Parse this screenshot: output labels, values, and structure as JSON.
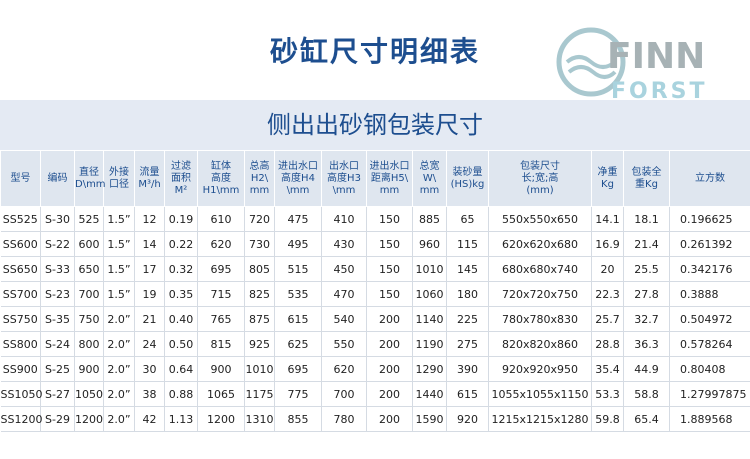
{
  "header": {
    "title": "砂缸尺寸明细表",
    "logo": {
      "line1": "FINN",
      "line2": "FORST"
    }
  },
  "subtitle": "侧出出砂钢包装尺寸",
  "table": {
    "columns": [
      [
        "型号"
      ],
      [
        "编码"
      ],
      [
        "直径",
        "D\\mm"
      ],
      [
        "外接",
        "口径"
      ],
      [
        "流量",
        "M³/h"
      ],
      [
        "过滤",
        "面积",
        "M²"
      ],
      [
        "缸体",
        "高度",
        "H1\\mm"
      ],
      [
        "总高",
        "H2\\",
        "mm"
      ],
      [
        "进出水口",
        "高度H4",
        "\\mm"
      ],
      [
        "出水口",
        "高度H3",
        "\\mm"
      ],
      [
        "进出水口",
        "距离H5\\",
        "mm"
      ],
      [
        "总宽",
        "W\\",
        "mm"
      ],
      [
        "装砂量",
        "(HS)kg"
      ],
      [
        "包装尺寸",
        "长;宽;高",
        "(mm)"
      ],
      [
        "净重",
        "Kg"
      ],
      [
        "包装全",
        "重Kg"
      ],
      [
        "立方数"
      ]
    ],
    "rows": [
      [
        "SS525",
        "S-30",
        "525",
        "1.5”",
        "12",
        "0.19",
        "610",
        "720",
        "475",
        "410",
        "150",
        "885",
        "65",
        "550x550x650",
        "14.1",
        "18.1",
        "0.196625"
      ],
      [
        "SS600",
        "S-22",
        "600",
        "1.5”",
        "14",
        "0.22",
        "620",
        "730",
        "495",
        "430",
        "150",
        "960",
        "115",
        "620x620x680",
        "16.9",
        "21.4",
        "0.261392"
      ],
      [
        "SS650",
        "S-33",
        "650",
        "1.5”",
        "17",
        "0.32",
        "695",
        "805",
        "515",
        "450",
        "150",
        "1010",
        "145",
        "680x680x740",
        "20",
        "25.5",
        "0.342176"
      ],
      [
        "SS700",
        "S-23",
        "700",
        "1.5”",
        "19",
        "0.35",
        "715",
        "825",
        "535",
        "470",
        "150",
        "1060",
        "180",
        "720x720x750",
        "22.3",
        "27.8",
        "0.3888"
      ],
      [
        "SS750",
        "S-35",
        "750",
        "2.0”",
        "21",
        "0.40",
        "765",
        "875",
        "615",
        "540",
        "200",
        "1140",
        "225",
        "780x780x830",
        "25.7",
        "32.7",
        "0.504972"
      ],
      [
        "SS800",
        "S-24",
        "800",
        "2.0”",
        "24",
        "0.50",
        "815",
        "925",
        "625",
        "550",
        "200",
        "1190",
        "275",
        "820x820x860",
        "28.8",
        "36.3",
        "0.578264"
      ],
      [
        "SS900",
        "S-25",
        "900",
        "2.0”",
        "30",
        "0.64",
        "900",
        "1010",
        "695",
        "620",
        "200",
        "1290",
        "390",
        "920x920x950",
        "35.4",
        "44.9",
        "0.80408"
      ],
      [
        "SS1050",
        "S-27",
        "1050",
        "2.0”",
        "38",
        "0.88",
        "1065",
        "1175",
        "775",
        "700",
        "200",
        "1440",
        "615",
        "1055x1055x1150",
        "53.3",
        "58.8",
        "1.27997875"
      ],
      [
        "SS1200",
        "S-29",
        "1200",
        "2.0”",
        "42",
        "1.13",
        "1200",
        "1310",
        "855",
        "780",
        "200",
        "1590",
        "920",
        "1215x1215x1280",
        "59.8",
        "65.4",
        "1.889568"
      ]
    ]
  }
}
